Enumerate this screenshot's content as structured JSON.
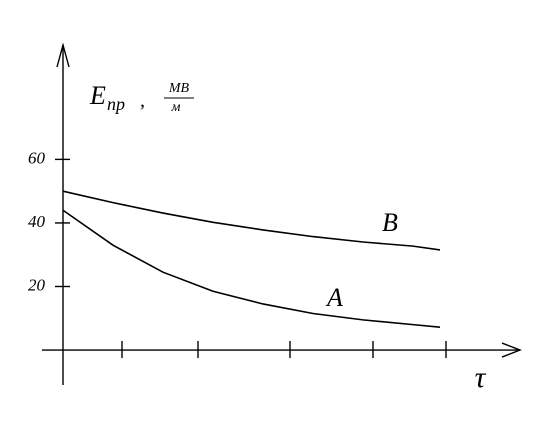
{
  "chart_data": {
    "type": "line",
    "ylabel_symbol": "E",
    "ylabel_subscript": "пр",
    "ylabel_separator": ",",
    "ylabel_unit_numerator": "МВ",
    "ylabel_unit_denominator": "м",
    "xlabel": "τ",
    "x": [
      0,
      5,
      10,
      15,
      20,
      25,
      30,
      35,
      37.7
    ],
    "series": [
      {
        "name": "B",
        "color": "#000000",
        "values": [
          50,
          46.4,
          43.1,
          40.2,
          37.8,
          35.7,
          34.0,
          32.7,
          31.5
        ]
      },
      {
        "name": "A",
        "color": "#000000",
        "values": [
          44,
          33,
          24.5,
          18.5,
          14.5,
          11.5,
          9.5,
          8,
          7.2
        ]
      }
    ],
    "xlim": [
      -2.1,
      45.7
    ],
    "ylim": [
      -11,
      96
    ],
    "xticks": [
      5.9,
      13.5,
      22.7,
      31,
      38.3
    ],
    "yticks": [
      20,
      40,
      60
    ],
    "grid": false
  }
}
